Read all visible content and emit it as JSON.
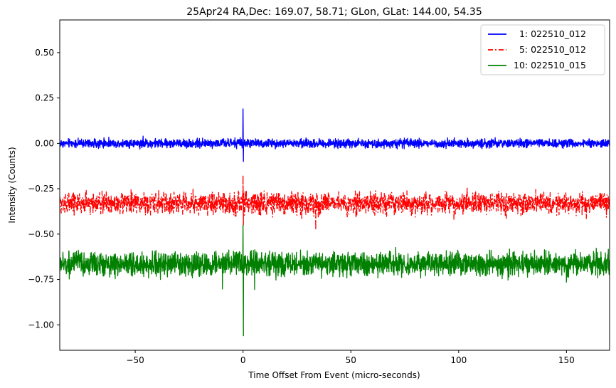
{
  "chart_data": {
    "type": "line",
    "title": "25Apr24 RA,Dec:  169.07,  58.71; GLon, GLat:  144.00,  54.35",
    "xlabel": "Time Offset From Event (micro-seconds)",
    "ylabel": "Intensity (Counts)",
    "xlim": [
      -85,
      170
    ],
    "ylim": [
      -1.14,
      0.68
    ],
    "xticks": [
      -50,
      0,
      50,
      100,
      150
    ],
    "xtick_labels": [
      "−50",
      "0",
      "50",
      "100",
      "150"
    ],
    "yticks": [
      0.5,
      0.25,
      0.0,
      -0.25,
      -0.5,
      -0.75,
      -1.0
    ],
    "ytick_labels": [
      "0.50",
      "0.25",
      "0.00",
      "−0.25",
      "−0.50",
      "−0.75",
      "−1.00"
    ],
    "grid": false,
    "legend_position": "top-right",
    "series": [
      {
        "name": "  1: 022510_012",
        "color": "#0000ff",
        "style": "solid",
        "baseline": 0.0,
        "noise_amplitude": 0.022,
        "event": {
          "x": 0.0,
          "peak_max": 0.19,
          "peak_min": -0.1
        },
        "x_range": [
          -85,
          170
        ]
      },
      {
        "name": "  5: 022510_012",
        "color": "#ff0000",
        "style": "dashdot",
        "baseline": -0.33,
        "noise_amplitude": 0.055,
        "event": {
          "x": 0.0,
          "peak_max": -0.18,
          "peak_min": -0.45
        },
        "x_range": [
          -85,
          170
        ]
      },
      {
        "name": "10: 022510_015",
        "color": "#008000",
        "style": "solid",
        "baseline": -0.665,
        "noise_amplitude": 0.06,
        "event": {
          "x": 0.0,
          "peak_max": -0.45,
          "peak_min": -1.06
        },
        "x_range": [
          -85,
          170
        ]
      }
    ]
  }
}
